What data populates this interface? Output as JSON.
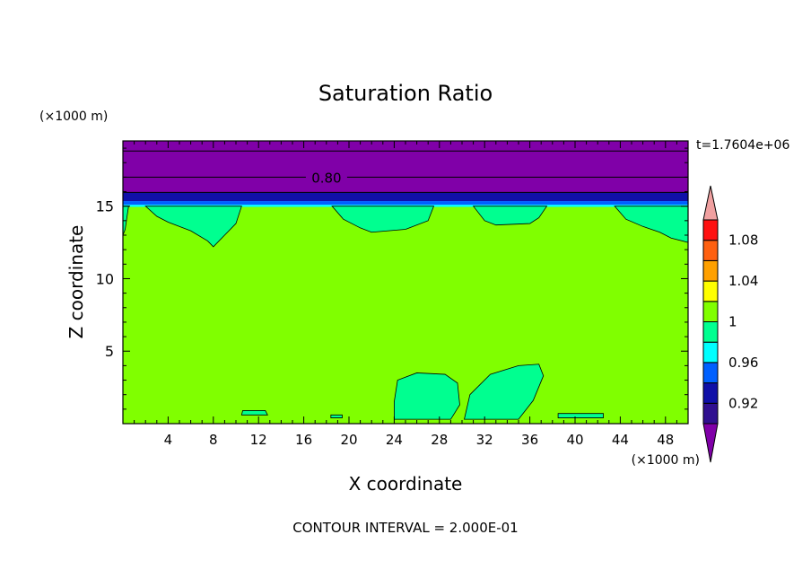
{
  "chart_data": {
    "type": "contour",
    "title": "Saturation Ratio",
    "xlabel": "X coordinate",
    "ylabel": "Z coordinate",
    "x_units": "(×1000 m)",
    "y_units": "(×1000 m)",
    "xlim": [
      0,
      50
    ],
    "ylim": [
      0,
      19.5
    ],
    "x_ticks": [
      4,
      8,
      12,
      16,
      20,
      24,
      28,
      32,
      36,
      40,
      44,
      48
    ],
    "y_ticks": [
      5,
      10,
      15
    ],
    "time_label": "t=1.7604e+06",
    "footer": "CONTOUR INTERVAL = 2.000E-01",
    "contour_label": "0.80",
    "contour_label_z": 17,
    "bands": [
      {
        "z0": 0.0,
        "z1": 14.95,
        "value": 0.99,
        "color": "#80ff00"
      },
      {
        "z0": 14.95,
        "z1": 15.1,
        "value": 0.97,
        "color": "#00ffff"
      },
      {
        "z0": 15.1,
        "z1": 15.35,
        "value": 0.95,
        "color": "#0060ff"
      },
      {
        "z0": 15.35,
        "z1": 15.95,
        "value": 0.93,
        "color": "#1010a8"
      },
      {
        "z0": 15.95,
        "z1": 19.5,
        "value": 0.8,
        "color": "#8000a8"
      }
    ],
    "contour_lines_z": [
      15.95,
      17.0,
      18.8
    ],
    "patches": [
      {
        "value": 0.99,
        "color": "#00ff90",
        "poly": [
          [
            2,
            15
          ],
          [
            10.5,
            15
          ],
          [
            10,
            13.8
          ],
          [
            9,
            13
          ],
          [
            8,
            12.2
          ],
          [
            7.5,
            12.6
          ],
          [
            6,
            13.3
          ],
          [
            4,
            13.9
          ],
          [
            3,
            14.3
          ]
        ]
      },
      {
        "value": 0.99,
        "color": "#00ff90",
        "poly": [
          [
            18.5,
            15
          ],
          [
            27.5,
            15
          ],
          [
            27,
            14
          ],
          [
            25,
            13.4
          ],
          [
            22,
            13.2
          ],
          [
            21,
            13.5
          ],
          [
            19.5,
            14.1
          ]
        ]
      },
      {
        "value": 0.99,
        "color": "#00ff90",
        "poly": [
          [
            31,
            15
          ],
          [
            37.5,
            15
          ],
          [
            36.8,
            14.2
          ],
          [
            36,
            13.8
          ],
          [
            33,
            13.7
          ],
          [
            32,
            14
          ]
        ]
      },
      {
        "value": 0.99,
        "color": "#00ff90",
        "poly": [
          [
            43.5,
            15
          ],
          [
            50,
            15
          ],
          [
            50,
            12.5
          ],
          [
            48.5,
            12.8
          ],
          [
            47.5,
            13.2
          ],
          [
            46,
            13.6
          ],
          [
            44.5,
            14.1
          ]
        ]
      },
      {
        "value": 0.99,
        "color": "#00ff90",
        "poly": [
          [
            0,
            15
          ],
          [
            0.5,
            15
          ],
          [
            0.2,
            13.4
          ],
          [
            0,
            13
          ]
        ]
      },
      {
        "value": 0.99,
        "color": "#00ff90",
        "poly": [
          [
            24,
            0.3
          ],
          [
            29,
            0.3
          ],
          [
            29.8,
            1.3
          ],
          [
            29.6,
            2.8
          ],
          [
            28.5,
            3.4
          ],
          [
            26,
            3.5
          ],
          [
            24.3,
            3
          ],
          [
            24,
            1.5
          ]
        ]
      },
      {
        "value": 0.99,
        "color": "#00ff90",
        "poly": [
          [
            30.2,
            0.3
          ],
          [
            35,
            0.3
          ],
          [
            36.3,
            1.6
          ],
          [
            37.2,
            3.3
          ],
          [
            36.8,
            4.1
          ],
          [
            35,
            4
          ],
          [
            32.5,
            3.4
          ],
          [
            30.7,
            2
          ]
        ]
      },
      {
        "value": 0.99,
        "color": "#00ff90",
        "poly": [
          [
            10.5,
            0.6
          ],
          [
            12.8,
            0.6
          ],
          [
            12.6,
            0.9
          ],
          [
            10.6,
            0.9
          ]
        ]
      },
      {
        "value": 0.99,
        "color": "#00ff90",
        "poly": [
          [
            38.5,
            0.4
          ],
          [
            42.5,
            0.4
          ],
          [
            42.5,
            0.7
          ],
          [
            38.5,
            0.7
          ]
        ]
      },
      {
        "value": 0.99,
        "color": "#00ff90",
        "poly": [
          [
            18.4,
            0.4
          ],
          [
            19.4,
            0.4
          ],
          [
            19.4,
            0.6
          ],
          [
            18.4,
            0.6
          ]
        ]
      }
    ],
    "colorbar": {
      "colors": [
        "#8000a8",
        "#301090",
        "#1010a8",
        "#0060ff",
        "#00ffff",
        "#00ff90",
        "#80ff00",
        "#ffff00",
        "#ffa000",
        "#ff6010",
        "#ff1010",
        "#f0a0a0"
      ],
      "labels": [
        "0.92",
        "0.96",
        "1",
        "1.04",
        "1.08"
      ]
    }
  }
}
